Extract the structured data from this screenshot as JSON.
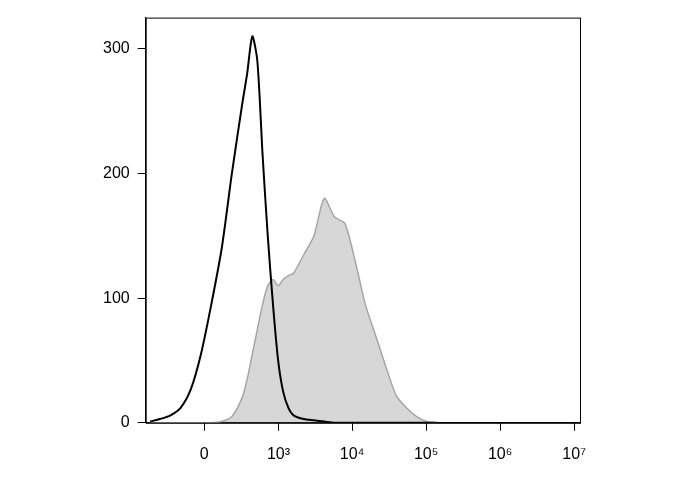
{
  "chart_data": {
    "type": "line",
    "x": [
      -520,
      -370,
      -250,
      -160,
      -85,
      -20,
      45,
      115,
      195,
      295,
      355,
      425,
      505,
      600,
      710,
      840,
      990,
      1160,
      1370,
      1610,
      2220,
      3050,
      4200,
      5780,
      7960,
      10960,
      15080,
      20760,
      28580,
      39320,
      54120,
      74500,
      102500,
      141100
    ],
    "series": [
      {
        "type": "line",
        "color": "#000000",
        "values": [
          1,
          3,
          6,
          12,
          27,
          55,
          95,
          140,
          200,
          255,
          280,
          310,
          290,
          215,
          150,
          95,
          50,
          25,
          12,
          6,
          3,
          2,
          1,
          0,
          0,
          0,
          0,
          0,
          0,
          0,
          0,
          0,
          0,
          0
        ]
      },
      {
        "type": "area",
        "color": "#a6a6a6",
        "values": [
          0,
          0,
          0,
          0,
          0,
          0,
          0,
          1,
          5,
          20,
          35,
          55,
          75,
          95,
          110,
          115,
          110,
          115,
          118,
          120,
          135,
          150,
          180,
          165,
          160,
          130,
          95,
          70,
          45,
          22,
          12,
          5,
          1,
          0
        ]
      }
    ],
    "xlim": [
      -600,
      12000000
    ],
    "xticks": [
      0,
      {
        "value": 1000,
        "label": "10³"
      },
      {
        "value": 10000,
        "label": "10⁴"
      },
      {
        "value": 100000,
        "label": "10⁵"
      },
      {
        "value": 1000000,
        "label": "10⁶"
      },
      {
        "value": 10000000,
        "label": "10⁷"
      }
    ],
    "ylim": [
      0,
      325
    ],
    "yticks": [
      0,
      100,
      200,
      300
    ],
    "grid": false
  }
}
